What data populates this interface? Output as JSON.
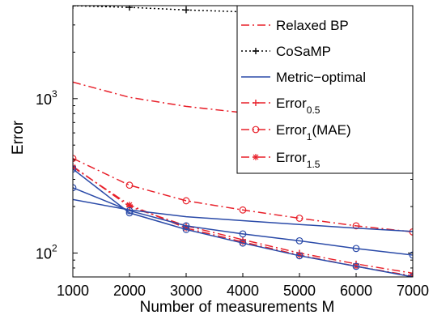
{
  "chart_data": {
    "type": "line",
    "title": "",
    "xlabel": "Number of measurements M",
    "ylabel": "Error",
    "x": [
      1000,
      2000,
      3000,
      4000,
      5000,
      6000,
      7000
    ],
    "xlim": [
      1000,
      7000
    ],
    "ylim": [
      70,
      4000
    ],
    "yscale": "log",
    "x_ticks": [
      "1000",
      "2000",
      "3000",
      "4000",
      "5000",
      "6000",
      "7000"
    ],
    "y_ticks": [
      {
        "value": 100,
        "base": "10",
        "exp": "2"
      },
      {
        "value": 1000,
        "base": "10",
        "exp": "3"
      }
    ],
    "grid": false,
    "legend_position": "top-right",
    "legend": [
      {
        "main": "Relaxed BP",
        "sub": "",
        "suffix": "",
        "color": "#e8202a",
        "dash": "10,4,2,4",
        "marker": "none"
      },
      {
        "main": "CoSaMP",
        "sub": "",
        "suffix": "",
        "color": "#000000",
        "dash": "2,3",
        "marker": "plus"
      },
      {
        "main": "Metric−optimal",
        "sub": "",
        "suffix": "",
        "color": "#2a4aa8",
        "dash": "",
        "marker": "none"
      },
      {
        "main": "Error",
        "sub": "0.5",
        "suffix": "",
        "color": "#e8202a",
        "dash": "10,4,2,4",
        "marker": "plus"
      },
      {
        "main": "Error",
        "sub": "1",
        "suffix": "(MAE)",
        "color": "#e8202a",
        "dash": "10,4,2,4",
        "marker": "circle"
      },
      {
        "main": "Error",
        "sub": "1.5",
        "suffix": "",
        "color": "#e8202a",
        "dash": "10,4,2,4",
        "marker": "star"
      }
    ],
    "series": [
      {
        "legend_index": 1,
        "color": "#000000",
        "dash": "2,3",
        "marker": "plus",
        "values": [
          4000,
          3900,
          3750,
          3650,
          3600,
          3550,
          3500
        ]
      },
      {
        "legend_index": 0,
        "color": "#e8202a",
        "dash": "10,4,2,4",
        "marker": "none",
        "values": [
          1280,
          1020,
          890,
          810,
          760,
          710,
          670
        ]
      },
      {
        "legend_index": 4,
        "color": "#e8202a",
        "dash": "10,4,2,4",
        "marker": "circle",
        "values": [
          410,
          275,
          218,
          190,
          168,
          150,
          137
        ]
      },
      {
        "legend_index": 3,
        "color": "#e8202a",
        "dash": "10,4,2,4",
        "marker": "plus",
        "values": [
          365,
          200,
          150,
          122,
          100,
          85,
          74
        ]
      },
      {
        "legend_index": 5,
        "color": "#e8202a",
        "dash": "10,4,2,4",
        "marker": "star",
        "values": [
          360,
          205,
          145,
          118,
          97,
          82,
          71
        ]
      },
      {
        "legend_index": 2,
        "color": "#2a4aa8",
        "dash": "",
        "marker": "none",
        "values": [
          222,
          190,
          172,
          162,
          153,
          145,
          138
        ]
      },
      {
        "legend_index": 2,
        "color": "#2a4aa8",
        "dash": "",
        "marker": "circle",
        "values": [
          265,
          188,
          150,
          133,
          120,
          107,
          97
        ]
      },
      {
        "legend_index": 2,
        "color": "#2a4aa8",
        "dash": "",
        "marker": "circle",
        "values": [
          350,
          182,
          142,
          116,
          96,
          82,
          70
        ]
      }
    ]
  }
}
